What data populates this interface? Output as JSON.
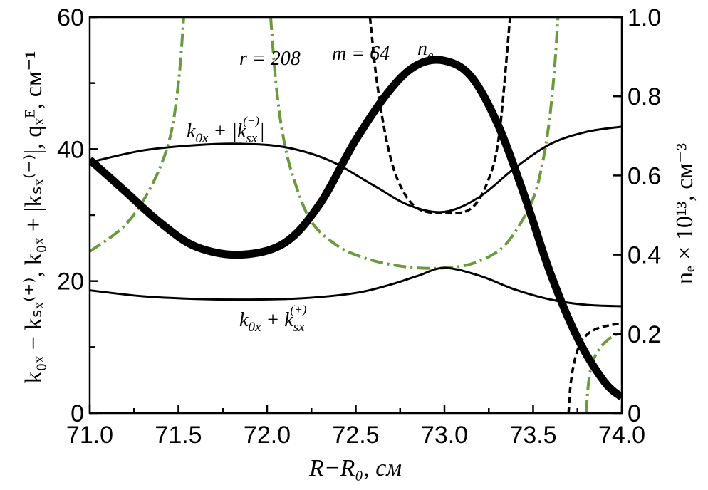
{
  "chart_data": {
    "type": "line",
    "xlabel": "R−R₀, см",
    "ylabel_left": "k₀ₓ − kₛₓ⁽⁺⁾, k₀ₓ + |kₛₓ⁽⁻⁾|, qₓᴱ, см⁻¹",
    "ylabel_right": "nₑ × 10¹³, см⁻³",
    "xlim": [
      71.0,
      74.0
    ],
    "ylim_left": [
      0,
      60
    ],
    "ylim_right": [
      0,
      1.0
    ],
    "x_ticks": [
      "71.0",
      "71.5",
      "72.0",
      "72.5",
      "73.0",
      "73.5",
      "74.0"
    ],
    "y_ticks_left": [
      "0",
      "20",
      "40",
      "60"
    ],
    "y_ticks_right": [
      "0",
      "0.2",
      "0.4",
      "0.6",
      "0.8",
      "1.0"
    ],
    "annotations": {
      "r": "r = 208",
      "m": "m = 64",
      "ne": "n",
      "ne_sub": "e",
      "upper": "k",
      "upper_sub": "0x",
      "upper_plus": " + |k",
      "upper_sub2": "sx",
      "upper_sup2": "(−)",
      "upper_end": "|",
      "lower": "k",
      "lower_sub": "0x",
      "lower_plus": " + k",
      "lower_sub2": "sx",
      "lower_sup2": "(+)"
    },
    "series": [
      {
        "axis": "right",
        "style": "thick-solid",
        "x": [
          71.0,
          71.2,
          71.4,
          71.6,
          71.85,
          72.1,
          72.3,
          72.5,
          72.7,
          72.85,
          73.0,
          73.15,
          73.3,
          73.45,
          73.6,
          73.75,
          73.9,
          74.0
        ],
        "y": [
          0.64,
          0.56,
          0.48,
          0.42,
          0.4,
          0.43,
          0.53,
          0.69,
          0.82,
          0.88,
          0.89,
          0.85,
          0.73,
          0.55,
          0.35,
          0.19,
          0.08,
          0.04
        ]
      },
      {
        "axis": "left",
        "style": "thin-solid",
        "x": [
          71.0,
          71.3,
          71.6,
          71.85,
          72.1,
          72.35,
          72.6,
          72.8,
          73.0,
          73.2,
          73.4,
          73.6,
          73.8,
          74.0
        ],
        "y": [
          38.0,
          39.8,
          40.6,
          40.8,
          40.3,
          38.3,
          34.5,
          31.5,
          30.5,
          32.8,
          37.2,
          40.8,
          42.6,
          43.4
        ]
      },
      {
        "axis": "left",
        "style": "thin-solid",
        "x": [
          71.0,
          71.3,
          71.6,
          71.9,
          72.2,
          72.5,
          72.7,
          72.85,
          73.0,
          73.2,
          73.4,
          73.6,
          73.8,
          74.0
        ],
        "y": [
          18.6,
          17.7,
          17.3,
          17.2,
          17.4,
          18.2,
          19.5,
          20.8,
          22.0,
          20.8,
          18.7,
          17.2,
          16.4,
          16.2
        ]
      },
      {
        "axis": "left",
        "style": "dashed",
        "x": [
          72.58,
          72.62,
          72.68,
          72.75,
          72.85,
          73.0,
          73.15,
          73.25,
          73.31,
          73.37
        ],
        "y": [
          60,
          50,
          40.5,
          34.5,
          31.0,
          30.3,
          31.0,
          35.5,
          42.5,
          60
        ]
      },
      {
        "axis": "left",
        "style": "dashed",
        "x": [
          73.7,
          73.71,
          73.73,
          73.76,
          73.8,
          73.86,
          73.93,
          74.0
        ],
        "y": [
          0,
          4,
          7.5,
          10.2,
          11.8,
          12.8,
          13.3,
          13.6
        ]
      },
      {
        "axis": "left",
        "style": "dash-dot-green",
        "x": [
          71.0,
          71.2,
          71.35,
          71.45,
          71.5,
          71.53
        ],
        "y": [
          24.5,
          28.5,
          34.5,
          41.5,
          50,
          60
        ]
      },
      {
        "axis": "left",
        "style": "dash-dot-green",
        "x": [
          72.02,
          72.05,
          72.09,
          72.15,
          72.25,
          72.4,
          72.55,
          72.7,
          72.85,
          73.0,
          73.15,
          73.3,
          73.4,
          73.5,
          73.55,
          73.59,
          73.62,
          73.64
        ],
        "y": [
          60,
          50,
          42,
          35.5,
          29,
          25.3,
          23.5,
          22.5,
          22.0,
          22.0,
          22.6,
          24.5,
          27.5,
          32.5,
          37.5,
          44,
          52,
          60
        ]
      },
      {
        "axis": "left",
        "style": "dash-dot-green",
        "x": [
          73.8,
          73.81,
          73.83,
          73.87,
          73.93,
          74.0
        ],
        "y": [
          0,
          4,
          7.3,
          9.6,
          11.3,
          12.3
        ]
      }
    ]
  }
}
